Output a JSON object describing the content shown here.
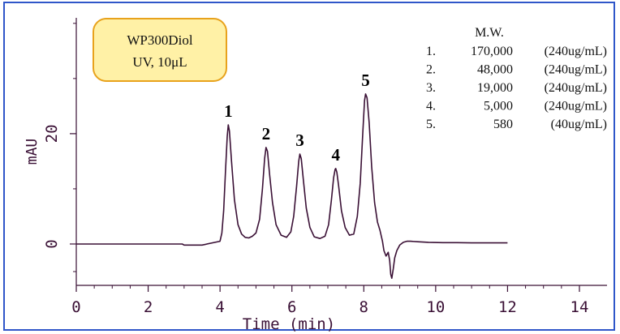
{
  "chart_data": {
    "type": "line",
    "xlabel": "Time (min)",
    "ylabel": "mAU",
    "xlim": [
      0,
      14
    ],
    "ylim": [
      -7.5,
      41
    ],
    "x_ticks": [
      0,
      2,
      4,
      6,
      8,
      10,
      12,
      14
    ],
    "y_ticks": [
      0,
      20
    ],
    "legend_box": {
      "line1": "WP300Diol",
      "line2": "UV, 10μL"
    },
    "peaks": [
      {
        "label": "1",
        "x": 4.23,
        "y": 21.6
      },
      {
        "label": "2",
        "x": 5.28,
        "y": 17.5
      },
      {
        "label": "3",
        "x": 6.22,
        "y": 16.3
      },
      {
        "label": "4",
        "x": 7.22,
        "y": 13.7
      },
      {
        "label": "5",
        "x": 8.05,
        "y": 27.2
      }
    ],
    "table": {
      "header": "M.W.",
      "rows": [
        {
          "no": "1.",
          "mw": "170,000",
          "conc": "(240ug/mL)"
        },
        {
          "no": "2.",
          "mw": "48,000",
          "conc": "(240ug/mL)"
        },
        {
          "no": "3.",
          "mw": "19,000",
          "conc": "(240ug/mL)"
        },
        {
          "no": "4.",
          "mw": "5,000",
          "conc": "(240ug/mL)"
        },
        {
          "no": "5.",
          "mw": "580",
          "conc": "(40ug/mL)"
        }
      ]
    },
    "series": [
      {
        "color": "#3a1035",
        "x": [
          0,
          0.5,
          1,
          1.5,
          2,
          2.5,
          2.95,
          3.0,
          3.5,
          4.0,
          4.05,
          4.1,
          4.15,
          4.2,
          4.23,
          4.26,
          4.32,
          4.4,
          4.5,
          4.6,
          4.7,
          4.8,
          4.9,
          5.0,
          5.1,
          5.18,
          5.24,
          5.28,
          5.32,
          5.38,
          5.46,
          5.56,
          5.7,
          5.85,
          5.97,
          6.05,
          6.13,
          6.19,
          6.22,
          6.26,
          6.32,
          6.4,
          6.5,
          6.62,
          6.78,
          6.92,
          7.02,
          7.1,
          7.16,
          7.2,
          7.22,
          7.25,
          7.3,
          7.38,
          7.48,
          7.6,
          7.72,
          7.82,
          7.9,
          7.97,
          8.02,
          8.05,
          8.09,
          8.15,
          8.22,
          8.3,
          8.38,
          8.45,
          8.52,
          8.56,
          8.62,
          8.68,
          8.72,
          8.75,
          8.78,
          8.82,
          8.86,
          8.92,
          9.0,
          9.1,
          9.2,
          9.3,
          9.5,
          9.8,
          10.2,
          10.6,
          11.0,
          11.5,
          12.0
        ],
        "y": [
          0,
          0,
          0,
          0,
          0,
          0,
          0,
          -0.2,
          -0.2,
          0.5,
          2.0,
          6.0,
          13.0,
          19.5,
          21.6,
          20.5,
          15.0,
          8.0,
          3.5,
          1.8,
          1.2,
          1.1,
          1.4,
          2.0,
          4.5,
          10.0,
          15.5,
          17.5,
          16.8,
          12.5,
          7.5,
          3.5,
          1.6,
          1.2,
          2.2,
          5.0,
          10.5,
          15.0,
          16.3,
          15.5,
          11.5,
          6.5,
          3.0,
          1.3,
          1.0,
          1.4,
          3.5,
          8.0,
          12.0,
          13.5,
          13.7,
          13.0,
          10.5,
          6.0,
          3.0,
          1.6,
          1.8,
          5.0,
          11.0,
          20.0,
          26.0,
          27.2,
          26.5,
          22.0,
          14.0,
          7.5,
          4.0,
          2.5,
          0.5,
          -1.2,
          -2.2,
          -1.5,
          -3.0,
          -5.5,
          -6.2,
          -4.5,
          -2.5,
          -1.2,
          -0.2,
          0.3,
          0.5,
          0.5,
          0.4,
          0.3,
          0.25,
          0.25,
          0.2,
          0.2,
          0.2
        ]
      }
    ]
  }
}
